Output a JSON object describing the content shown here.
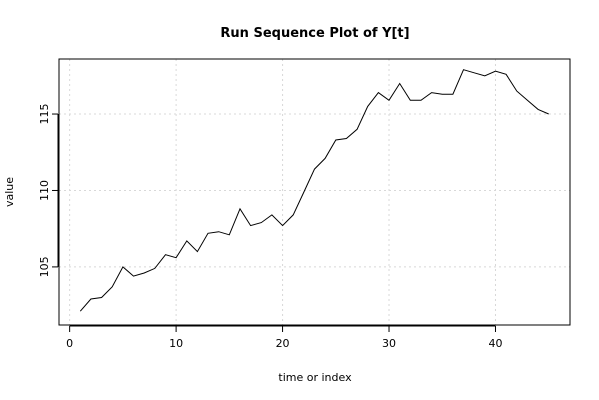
{
  "chart_data": {
    "type": "line",
    "title": "Run Sequence Plot of Y[t]",
    "xlabel": "time or index",
    "ylabel": "value",
    "xlim": [
      -1,
      47
    ],
    "ylim": [
      101.2,
      118.6
    ],
    "xticks": [
      0,
      10,
      20,
      30,
      40
    ],
    "yticks": [
      105,
      110,
      115
    ],
    "grid": true,
    "x": [
      1,
      2,
      3,
      4,
      5,
      6,
      7,
      8,
      9,
      10,
      11,
      12,
      13,
      14,
      15,
      16,
      17,
      18,
      19,
      20,
      21,
      22,
      23,
      24,
      25,
      26,
      27,
      28,
      29,
      30,
      31,
      32,
      33,
      34,
      35,
      36,
      37,
      38,
      39,
      40,
      41,
      42,
      43,
      44,
      45
    ],
    "series": [
      {
        "values": [
          102.1,
          102.9,
          103.0,
          103.7,
          105.0,
          104.4,
          104.6,
          104.9,
          105.8,
          105.6,
          106.7,
          106.0,
          107.2,
          107.3,
          107.1,
          108.8,
          107.7,
          107.9,
          108.4,
          107.7,
          108.4,
          109.9,
          111.4,
          112.1,
          113.3,
          113.4,
          114.0,
          115.5,
          116.4,
          115.9,
          117.0,
          115.9,
          115.9,
          116.4,
          116.3,
          116.3,
          117.9,
          117.7,
          117.5,
          117.8,
          117.6,
          116.5,
          115.9,
          115.3,
          115.0
        ]
      }
    ]
  }
}
